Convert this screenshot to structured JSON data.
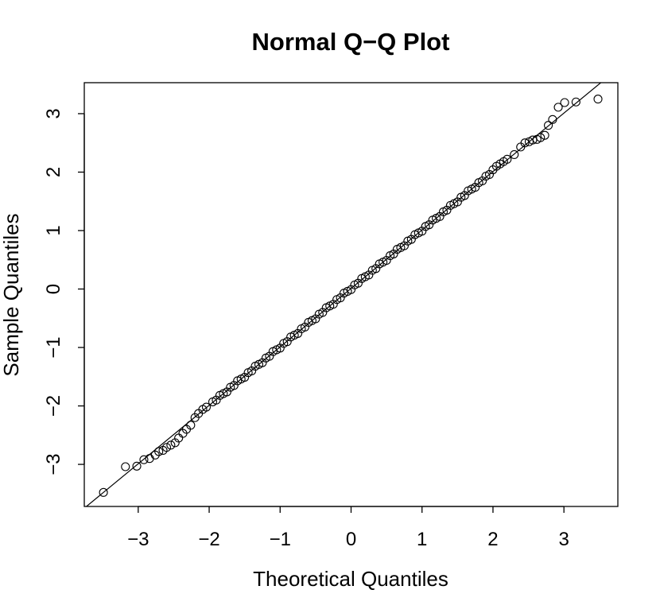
{
  "chart_data": {
    "type": "scatter",
    "title": "Normal Q−Q Plot",
    "x_label": "Theoretical Quantiles",
    "y_label": "Sample Quantiles",
    "xlim": [
      -3.76,
      3.76
    ],
    "ylim": [
      -3.72,
      3.53
    ],
    "xticks": [
      {
        "value": -3,
        "label": "−3"
      },
      {
        "value": -2,
        "label": "−2"
      },
      {
        "value": -1,
        "label": "−1"
      },
      0,
      1,
      2,
      3
    ],
    "yticks": [
      {
        "value": -3,
        "label": "−3"
      },
      {
        "value": -2,
        "label": "−2"
      },
      {
        "value": -1,
        "label": "−1"
      },
      0,
      1,
      2,
      3
    ],
    "color": "#000000",
    "reference_line": {
      "intercept": 0.01,
      "slope": 1.0
    },
    "x": [
      -3.49,
      -3.18,
      -3.02,
      -2.92,
      -2.84,
      -2.76,
      -2.71,
      -2.65,
      -2.6,
      -2.54,
      -2.48,
      -2.43,
      -2.37,
      -2.32,
      -2.26,
      -2.2,
      -2.15,
      -2.09,
      -2.04,
      -1.95,
      -1.9,
      -1.85,
      -1.8,
      -1.75,
      -1.7,
      -1.65,
      -1.6,
      -1.55,
      -1.5,
      -1.45,
      -1.4,
      -1.35,
      -1.3,
      -1.25,
      -1.2,
      -1.15,
      -1.1,
      -1.05,
      -1,
      -0.95,
      -0.9,
      -0.85,
      -0.8,
      -0.75,
      -0.7,
      -0.65,
      -0.6,
      -0.55,
      -0.5,
      -0.45,
      -0.4,
      -0.35,
      -0.3,
      -0.25,
      -0.2,
      -0.15,
      -0.1,
      -0.05,
      0,
      0.05,
      0.1,
      0.15,
      0.2,
      0.25,
      0.3,
      0.35,
      0.4,
      0.45,
      0.5,
      0.55,
      0.6,
      0.65,
      0.7,
      0.75,
      0.8,
      0.85,
      0.9,
      0.95,
      1,
      1.05,
      1.1,
      1.15,
      1.2,
      1.25,
      1.3,
      1.35,
      1.4,
      1.45,
      1.5,
      1.55,
      1.6,
      1.65,
      1.7,
      1.75,
      1.8,
      1.85,
      1.9,
      1.95,
      2,
      2.05,
      2.1,
      2.15,
      2.2,
      2.3,
      2.39,
      2.45,
      2.51,
      2.56,
      2.62,
      2.67,
      2.73,
      2.78,
      2.84,
      2.92,
      3.01,
      3.17,
      3.48
    ],
    "y": [
      -3.48,
      -3.04,
      -3.03,
      -2.92,
      -2.9,
      -2.84,
      -2.78,
      -2.76,
      -2.71,
      -2.67,
      -2.63,
      -2.55,
      -2.47,
      -2.4,
      -2.33,
      -2.2,
      -2.13,
      -2.06,
      -2.02,
      -1.93,
      -1.9,
      -1.82,
      -1.79,
      -1.76,
      -1.68,
      -1.65,
      -1.57,
      -1.54,
      -1.51,
      -1.43,
      -1.4,
      -1.32,
      -1.29,
      -1.26,
      -1.18,
      -1.15,
      -1.07,
      -1.04,
      -1.01,
      -0.93,
      -0.9,
      -0.82,
      -0.79,
      -0.76,
      -0.68,
      -0.65,
      -0.57,
      -0.54,
      -0.51,
      -0.43,
      -0.4,
      -0.32,
      -0.29,
      -0.26,
      -0.18,
      -0.15,
      -0.07,
      -0.04,
      -0.01,
      0.07,
      0.1,
      0.18,
      0.21,
      0.24,
      0.32,
      0.35,
      0.43,
      0.46,
      0.49,
      0.57,
      0.6,
      0.68,
      0.71,
      0.74,
      0.82,
      0.85,
      0.93,
      0.96,
      0.99,
      1.07,
      1.1,
      1.18,
      1.21,
      1.24,
      1.32,
      1.35,
      1.43,
      1.46,
      1.49,
      1.57,
      1.6,
      1.68,
      1.71,
      1.74,
      1.82,
      1.85,
      1.93,
      1.96,
      2.04,
      2.1,
      2.14,
      2.18,
      2.22,
      2.3,
      2.43,
      2.5,
      2.52,
      2.55,
      2.56,
      2.59,
      2.63,
      2.8,
      2.9,
      3.11,
      3.19,
      3.2,
      3.25
    ]
  }
}
